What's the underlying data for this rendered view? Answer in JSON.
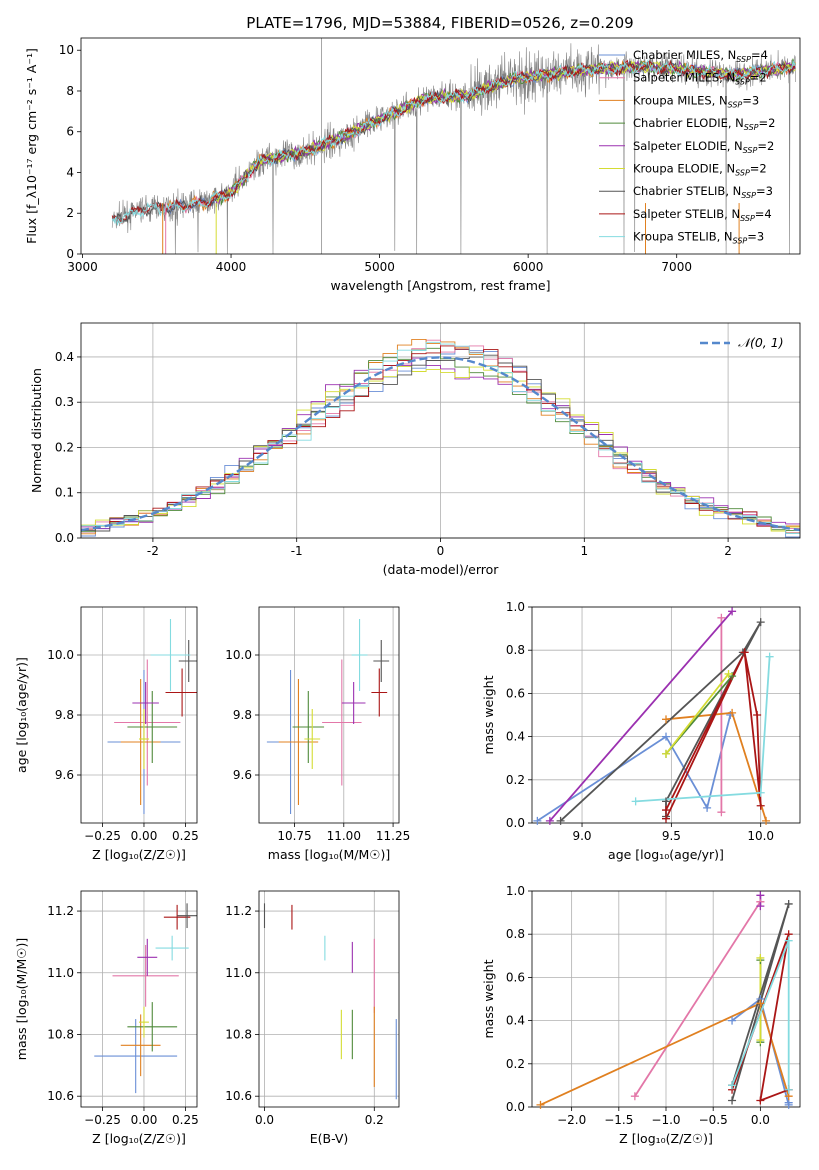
{
  "figure_title": "PLATE=1796, MJD=53884, FIBERID=0526, z=0.209",
  "colors": {
    "cm": "#6a8fd6",
    "sm": "#e377a8",
    "km": "#e08020",
    "ce": "#4f8a3a",
    "se": "#9b30b0",
    "ke": "#d4dc33",
    "cs": "#555555",
    "ss": "#aa1616",
    "ks": "#84dbe0",
    "data": "#808080",
    "norm": "#5588cc",
    "grid": "#b0b0b0"
  },
  "legend_spectrum": [
    {
      "key": "cm",
      "label": "Chabrier MILES, N",
      "sub": "SSP",
      "tail": "=4"
    },
    {
      "key": "sm",
      "label": "Salpeter MILES, N",
      "sub": "SSP",
      "tail": "=2"
    },
    {
      "key": "km",
      "label": "Kroupa MILES, N",
      "sub": "SSP",
      "tail": "=3"
    },
    {
      "key": "ce",
      "label": "Chabrier ELODIE, N",
      "sub": "SSP",
      "tail": "=2"
    },
    {
      "key": "se",
      "label": "Salpeter ELODIE, N",
      "sub": "SSP",
      "tail": "=2"
    },
    {
      "key": "ke",
      "label": "Kroupa ELODIE, N",
      "sub": "SSP",
      "tail": "=2"
    },
    {
      "key": "cs",
      "label": "Chabrier STELIB, N",
      "sub": "SSP",
      "tail": "=3"
    },
    {
      "key": "ss",
      "label": "Salpeter STELIB, N",
      "sub": "SSP",
      "tail": "=4"
    },
    {
      "key": "ks",
      "label": "Kroupa STELIB, N",
      "sub": "SSP",
      "tail": "=3"
    }
  ],
  "legend_hist": "𝒩(0, 1)",
  "chart_data": [
    {
      "id": "spectrum",
      "type": "line",
      "xlabel": "wavelength [Angstrom, rest frame]",
      "ylabel": "Flux [f_λ10⁻¹⁷ erg cm⁻² s⁻¹ A⁻¹]",
      "xlim": [
        2990,
        7830
      ],
      "ylim": [
        0,
        10.6
      ],
      "xticks": [
        3000,
        4000,
        5000,
        6000,
        7000
      ],
      "yticks": [
        0,
        2,
        4,
        6,
        8,
        10
      ],
      "continuum": {
        "x": [
          3200,
          3400,
          3600,
          3800,
          4000,
          4200,
          4500,
          4800,
          5000,
          5300,
          5600,
          5900,
          6200,
          6500,
          6800,
          7100,
          7400,
          7800
        ],
        "y": [
          1.6,
          2.2,
          2.3,
          2.5,
          3.0,
          4.6,
          5.0,
          5.9,
          6.6,
          7.6,
          7.8,
          8.6,
          8.9,
          9.1,
          9.2,
          9.0,
          8.8,
          9.2
        ]
      }
    },
    {
      "id": "residuals",
      "type": "bar",
      "xlabel": "(data-model)/error",
      "ylabel": "Normed distribution",
      "xlim": [
        -2.5,
        2.5
      ],
      "ylim": [
        0,
        0.475
      ],
      "xticks": [
        -2,
        -1,
        0,
        1,
        2
      ],
      "yticks": [
        0.0,
        0.1,
        0.2,
        0.3,
        0.4
      ]
    },
    {
      "id": "age_vs_Z",
      "type": "scatter",
      "xlabel": "Z [log₁₀(Z/Z☉)]",
      "ylabel": "age  [log₁₀(age/yr)]",
      "xlim": [
        -0.38,
        0.32
      ],
      "ylim": [
        9.44,
        10.16
      ],
      "xticks": [
        -0.25,
        0.0,
        0.25
      ],
      "yticks": [
        9.6,
        9.8,
        10.0
      ],
      "points": [
        {
          "key": "cm",
          "x": 0.0,
          "y": 9.71,
          "xerr": 0.22,
          "yerr": 0.24
        },
        {
          "key": "sm",
          "x": 0.02,
          "y": 9.775,
          "xerr": 0.2,
          "yerr": 0.21
        },
        {
          "key": "km",
          "x": -0.02,
          "y": 9.71,
          "xerr": 0.12,
          "yerr": 0.21
        },
        {
          "key": "ce",
          "x": 0.05,
          "y": 9.76,
          "xerr": 0.15,
          "yerr": 0.12
        },
        {
          "key": "se",
          "x": 0.01,
          "y": 9.84,
          "xerr": 0.08,
          "yerr": 0.07
        },
        {
          "key": "ke",
          "x": 0.0,
          "y": 9.72,
          "xerr": 0.03,
          "yerr": 0.1
        },
        {
          "key": "cs",
          "x": 0.27,
          "y": 9.98,
          "xerr": 0.06,
          "yerr": 0.07
        },
        {
          "key": "ss",
          "x": 0.23,
          "y": 9.875,
          "xerr": 0.1,
          "yerr": 0.08
        },
        {
          "key": "ks",
          "x": 0.16,
          "y": 10.0,
          "xerr": 0.12,
          "yerr": 0.12
        }
      ]
    },
    {
      "id": "age_vs_mass",
      "type": "scatter",
      "xlabel": "mass [log₁₀(M/M☉)]",
      "ylabel": "",
      "xlim": [
        10.57,
        11.28
      ],
      "ylim": [
        9.44,
        10.16
      ],
      "xticks": [
        10.75,
        11.0,
        11.25
      ],
      "yticks": [
        9.6,
        9.8,
        10.0
      ],
      "points": [
        {
          "key": "cm",
          "x": 10.73,
          "y": 9.71,
          "xerr": 0.12,
          "yerr": 0.24
        },
        {
          "key": "km",
          "x": 10.77,
          "y": 9.71,
          "xerr": 0.1,
          "yerr": 0.21
        },
        {
          "key": "ce",
          "x": 10.82,
          "y": 9.76,
          "xerr": 0.08,
          "yerr": 0.12
        },
        {
          "key": "ke",
          "x": 10.84,
          "y": 9.72,
          "xerr": 0.04,
          "yerr": 0.1
        },
        {
          "key": "sm",
          "x": 10.99,
          "y": 9.775,
          "xerr": 0.1,
          "yerr": 0.21
        },
        {
          "key": "se",
          "x": 11.05,
          "y": 9.84,
          "xerr": 0.06,
          "yerr": 0.07
        },
        {
          "key": "ks",
          "x": 11.08,
          "y": 10.0,
          "xerr": 0.04,
          "yerr": 0.12
        },
        {
          "key": "ss",
          "x": 11.18,
          "y": 9.875,
          "xerr": 0.04,
          "yerr": 0.08
        },
        {
          "key": "cs",
          "x": 11.19,
          "y": 9.98,
          "xerr": 0.04,
          "yerr": 0.07
        }
      ]
    },
    {
      "id": "weight_vs_age",
      "type": "line",
      "xlabel": "age  [log₁₀(age/yr)]",
      "ylabel": "mass weight",
      "xlim": [
        8.72,
        10.22
      ],
      "ylim": [
        0,
        1
      ],
      "xticks": [
        9.0,
        9.5,
        10.0
      ],
      "yticks": [
        0.0,
        0.2,
        0.4,
        0.6,
        0.8,
        1.0
      ],
      "series": [
        {
          "key": "cm",
          "x": [
            8.75,
            9.47,
            9.7,
            9.83
          ],
          "y": [
            0.01,
            0.4,
            0.07,
            0.5
          ]
        },
        {
          "key": "sm",
          "x": [
            9.78,
            9.78
          ],
          "y": [
            0.95,
            0.05
          ]
        },
        {
          "key": "km",
          "x": [
            9.47,
            9.84,
            10.03
          ],
          "y": [
            0.48,
            0.51,
            0.01
          ]
        },
        {
          "key": "ce",
          "x": [
            9.47,
            9.84
          ],
          "y": [
            0.32,
            0.68
          ]
        },
        {
          "key": "se",
          "x": [
            8.82,
            9.84
          ],
          "y": [
            0.01,
            0.98
          ]
        },
        {
          "key": "ke",
          "x": [
            9.47,
            9.82
          ],
          "y": [
            0.32,
            0.69
          ]
        },
        {
          "key": "cs",
          "x": [
            8.88,
            9.9,
            10.0,
            9.47,
            9.47
          ],
          "y": [
            0.01,
            0.79,
            0.93,
            0.1,
            0.03
          ]
        },
        {
          "key": "ss",
          "x": [
            9.47,
            9.91,
            9.98,
            10.0,
            9.91,
            9.47
          ],
          "y": [
            0.02,
            0.79,
            0.5,
            0.08,
            0.79,
            0.06
          ]
        },
        {
          "key": "ks",
          "x": [
            9.3,
            10.0,
            10.05
          ],
          "y": [
            0.1,
            0.14,
            0.77
          ]
        }
      ]
    },
    {
      "id": "mass_vs_Z",
      "type": "scatter",
      "xlabel": "Z [log₁₀(Z/Z☉)]",
      "ylabel": "mass [log₁₀(M/M☉)]",
      "xlim": [
        -0.38,
        0.32
      ],
      "ylim": [
        10.565,
        11.265
      ],
      "xticks": [
        -0.25,
        0.0,
        0.25
      ],
      "yticks": [
        10.6,
        10.8,
        11.0,
        11.2
      ],
      "points": [
        {
          "key": "cm",
          "x": -0.05,
          "y": 10.73,
          "xerr": 0.25,
          "yerr": 0.12
        },
        {
          "key": "km",
          "x": -0.02,
          "y": 10.765,
          "xerr": 0.12,
          "yerr": 0.1
        },
        {
          "key": "ce",
          "x": 0.05,
          "y": 10.825,
          "xerr": 0.15,
          "yerr": 0.08
        },
        {
          "key": "ke",
          "x": 0.0,
          "y": 10.84,
          "xerr": 0.03,
          "yerr": 0.05
        },
        {
          "key": "sm",
          "x": 0.01,
          "y": 10.99,
          "xerr": 0.2,
          "yerr": 0.1
        },
        {
          "key": "se",
          "x": 0.02,
          "y": 11.05,
          "xerr": 0.06,
          "yerr": 0.06
        },
        {
          "key": "ks",
          "x": 0.17,
          "y": 11.08,
          "xerr": 0.1,
          "yerr": 0.04
        },
        {
          "key": "ss",
          "x": 0.2,
          "y": 11.18,
          "xerr": 0.08,
          "yerr": 0.04
        },
        {
          "key": "cs",
          "x": 0.26,
          "y": 11.185,
          "xerr": 0.06,
          "yerr": 0.04
        }
      ]
    },
    {
      "id": "mass_vs_ebv",
      "type": "scatter",
      "xlabel": "E(B-V)",
      "ylabel": "",
      "xlim": [
        -0.01,
        0.245
      ],
      "ylim": [
        10.565,
        11.265
      ],
      "xticks": [
        0.0,
        0.2
      ],
      "yticks": [
        10.6,
        10.8,
        11.0,
        11.2
      ],
      "points": [
        {
          "key": "cs",
          "x": 0.0,
          "y": 11.185,
          "xerr": 0,
          "yerr": 0.04
        },
        {
          "key": "ss",
          "x": 0.05,
          "y": 11.18,
          "xerr": 0,
          "yerr": 0.04
        },
        {
          "key": "ks",
          "x": 0.11,
          "y": 11.08,
          "xerr": 0,
          "yerr": 0.04
        },
        {
          "key": "ke",
          "x": 0.14,
          "y": 10.8,
          "xerr": 0,
          "yerr": 0.08
        },
        {
          "key": "ce",
          "x": 0.16,
          "y": 10.8,
          "xerr": 0,
          "yerr": 0.08
        },
        {
          "key": "se",
          "x": 0.16,
          "y": 11.05,
          "xerr": 0,
          "yerr": 0.05
        },
        {
          "key": "sm",
          "x": 0.2,
          "y": 10.99,
          "xerr": 0,
          "yerr": 0.12
        },
        {
          "key": "km",
          "x": 0.2,
          "y": 10.76,
          "xerr": 0,
          "yerr": 0.13
        },
        {
          "key": "cm",
          "x": 0.24,
          "y": 10.72,
          "xerr": 0,
          "yerr": 0.13
        }
      ]
    },
    {
      "id": "weight_vs_Z",
      "type": "line",
      "xlabel": "Z [log₁₀(Z/Z☉)]",
      "ylabel": "mass weight",
      "xlim": [
        -2.42,
        0.42
      ],
      "ylim": [
        0,
        1
      ],
      "xticks": [
        -2.0,
        -1.5,
        -1.0,
        -0.5,
        0.0
      ],
      "yticks": [
        0.0,
        0.2,
        0.4,
        0.6,
        0.8,
        1.0
      ],
      "series": [
        {
          "key": "cm",
          "x": [
            -0.3,
            0.0,
            0.3,
            0.3
          ],
          "y": [
            0.4,
            0.5,
            0.01,
            0.02
          ]
        },
        {
          "key": "sm",
          "x": [
            -1.33,
            0.0,
            0.0
          ],
          "y": [
            0.05,
            0.95,
            0.95
          ]
        },
        {
          "key": "km",
          "x": [
            -2.33,
            0.0,
            0.3
          ],
          "y": [
            0.01,
            0.48,
            0.05
          ]
        },
        {
          "key": "ce",
          "x": [
            0.0,
            0.0
          ],
          "y": [
            0.3,
            0.68
          ]
        },
        {
          "key": "se",
          "x": [
            0.0,
            0.0
          ],
          "y": [
            0.98,
            0.93
          ]
        },
        {
          "key": "ke",
          "x": [
            0.0,
            0.0
          ],
          "y": [
            0.31,
            0.69
          ]
        },
        {
          "key": "cs",
          "x": [
            -0.3,
            0.3,
            -0.3,
            -0.3
          ],
          "y": [
            0.03,
            0.94,
            0.1,
            0.1
          ]
        },
        {
          "key": "ss",
          "x": [
            -0.3,
            0.3,
            0.0,
            0.3
          ],
          "y": [
            0.08,
            0.8,
            0.03,
            0.08
          ]
        },
        {
          "key": "ks",
          "x": [
            -0.3,
            0.3,
            0.3
          ],
          "y": [
            0.1,
            0.77,
            0.08
          ]
        }
      ]
    }
  ]
}
